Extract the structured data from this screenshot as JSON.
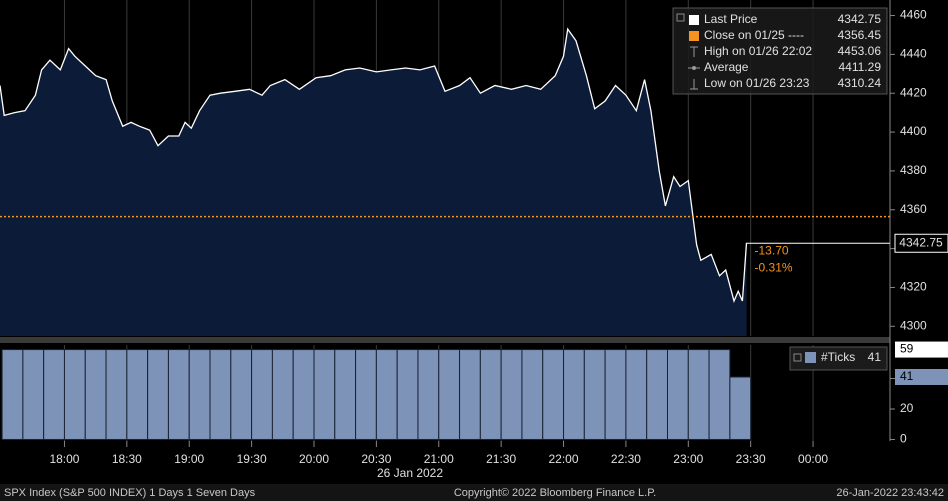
{
  "chart_data": [
    {
      "type": "area",
      "x": [
        1049,
        1051,
        1056,
        1061,
        1066,
        1069,
        1073,
        1078,
        1082,
        1085,
        1090,
        1095,
        1100,
        1103,
        1108,
        1112,
        1116,
        1121,
        1125,
        1130,
        1135,
        1138,
        1141,
        1145,
        1150,
        1155,
        1162,
        1169,
        1175,
        1179,
        1186,
        1193,
        1201,
        1208,
        1215,
        1222,
        1230,
        1237,
        1244,
        1251,
        1258,
        1263,
        1270,
        1275,
        1280,
        1287,
        1295,
        1302,
        1309,
        1316,
        1320,
        1322,
        1326,
        1331,
        1335,
        1340,
        1345,
        1350,
        1355,
        1359,
        1362,
        1366,
        1369,
        1373,
        1376,
        1380,
        1384,
        1386,
        1391,
        1395,
        1398,
        1402,
        1404,
        1406,
        1408
      ],
      "values": [
        4424,
        4408.6,
        4410,
        4411,
        4419,
        4432,
        4437,
        4432,
        4443,
        4439,
        4434,
        4429,
        4427,
        4416,
        4403,
        4405,
        4403,
        4401,
        4393,
        4398,
        4398,
        4405,
        4402,
        4411,
        4419,
        4420,
        4421,
        4422,
        4419,
        4424,
        4427,
        4422,
        4428,
        4429,
        4432,
        4433,
        4431,
        4432,
        4433,
        4432,
        4434,
        4421,
        4424,
        4428,
        4420,
        4424,
        4422,
        4424,
        4422,
        4429,
        4439,
        4453,
        4447,
        4429,
        4412,
        4416,
        4424,
        4419,
        4411,
        4427,
        4411,
        4380,
        4362,
        4377,
        4372,
        4375,
        4342,
        4334,
        4337,
        4326,
        4329,
        4313,
        4318,
        4313,
        4343
      ],
      "color": "#ffffff",
      "xlim": [
        1049,
        1477
      ],
      "xticks": [
        {
          "value": 1080,
          "label": "18:00"
        },
        {
          "value": 1110,
          "label": "18:30"
        },
        {
          "value": 1140,
          "label": "19:00"
        },
        {
          "value": 1170,
          "label": "19:30"
        },
        {
          "value": 1200,
          "label": "20:00"
        },
        {
          "value": 1230,
          "label": "20:30"
        },
        {
          "value": 1260,
          "label": "21:00"
        },
        {
          "value": 1290,
          "label": "21:30"
        },
        {
          "value": 1320,
          "label": "22:00"
        },
        {
          "value": 1350,
          "label": "22:30"
        },
        {
          "value": 1380,
          "label": "23:00"
        },
        {
          "value": 1410,
          "label": "23:30"
        },
        {
          "value": 1440,
          "label": "00:00"
        }
      ],
      "xlabel": "26 Jan 2022",
      "ylim": [
        4295,
        4468
      ],
      "yticks": [
        4300,
        4320,
        4340,
        4360,
        4380,
        4400,
        4420,
        4440,
        4460
      ],
      "legend": [
        {
          "label": "Last Price",
          "value": 4342.75
        },
        {
          "label": "Close on 01/25 ----",
          "value": 4356.45
        },
        {
          "label": "High on 01/26 22:02",
          "value": 4453.06
        },
        {
          "label": "Average",
          "value": 4411.29
        },
        {
          "label": "Low on 01/26 23:23",
          "value": 4310.24
        }
      ],
      "change": {
        "value": -13.7,
        "label": "-13.70"
      },
      "change_pct": {
        "value": -0.31,
        "label": "-0.31%"
      }
    },
    {
      "type": "histogram",
      "name": "#Ticks",
      "color": "#7d93b8",
      "bins": [
        1050,
        1060,
        1070,
        1080,
        1090,
        1100,
        1110,
        1120,
        1130,
        1140,
        1150,
        1160,
        1170,
        1180,
        1190,
        1200,
        1210,
        1220,
        1230,
        1240,
        1250,
        1260,
        1270,
        1280,
        1290,
        1300,
        1310,
        1320,
        1330,
        1340,
        1350,
        1360,
        1370,
        1380,
        1390,
        1400,
        1410
      ],
      "counts": [
        59,
        59,
        59,
        59,
        59,
        59,
        59,
        59,
        59,
        59,
        59,
        59,
        59,
        59,
        59,
        59,
        59,
        59,
        59,
        59,
        59,
        59,
        59,
        59,
        59,
        59,
        59,
        59,
        59,
        59,
        59,
        59,
        59,
        59,
        59,
        41
      ],
      "xlim": [
        1049,
        1477
      ],
      "ylim": [
        -1,
        62
      ],
      "yticks": [
        0,
        20,
        40
      ]
    }
  ],
  "footer": {
    "left": "SPX Index (S&P 500 INDEX) 1 Days 1 Seven Days",
    "center": "Copyright© 2022 Bloomberg Finance L.P.",
    "right": "26-Jan-2022 23:43:42"
  }
}
